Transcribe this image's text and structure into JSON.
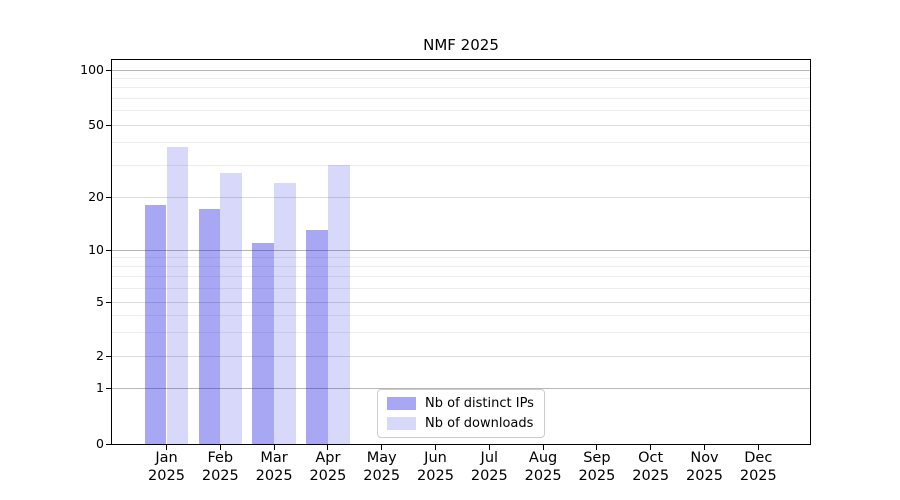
{
  "chart_data": {
    "type": "bar",
    "title": "NMF 2025",
    "categories": [
      "Jan 2025",
      "Feb 2025",
      "Mar 2025",
      "Apr 2025",
      "May 2025",
      "Jun 2025",
      "Jul 2025",
      "Aug 2025",
      "Sep 2025",
      "Oct 2025",
      "Nov 2025",
      "Dec 2025"
    ],
    "series": [
      {
        "name": "Nb of distinct IPs",
        "color": "rgba(10,10,225,0.36)",
        "values": [
          18,
          17,
          11,
          13,
          null,
          null,
          null,
          null,
          null,
          null,
          null,
          null
        ]
      },
      {
        "name": "Nb of downloads",
        "color": "rgba(10,10,225,0.16)",
        "values": [
          38,
          27,
          24,
          30,
          null,
          null,
          null,
          null,
          null,
          null,
          null,
          null
        ]
      }
    ],
    "y_axis": {
      "scale": "log-like",
      "ticks": [
        0,
        1,
        2,
        5,
        10,
        20,
        50,
        100
      ],
      "decade_gridlines": [
        1,
        10,
        100
      ],
      "mid_gridlines": [
        2,
        5,
        20,
        50
      ],
      "minor_gridlines": [
        3,
        4,
        6,
        7,
        8,
        9,
        30,
        40,
        60,
        70,
        80,
        90
      ],
      "range_top_value": 110
    },
    "legend_position": "lower center",
    "grid": true
  },
  "colors": {
    "background": "#ffffff",
    "spine": "#000000",
    "text": "#000000",
    "grid_decade": "#b6b6b6",
    "grid_mid": "#dcdcdc",
    "grid_minor": "#ececec",
    "legend_border": "#cccccc"
  }
}
